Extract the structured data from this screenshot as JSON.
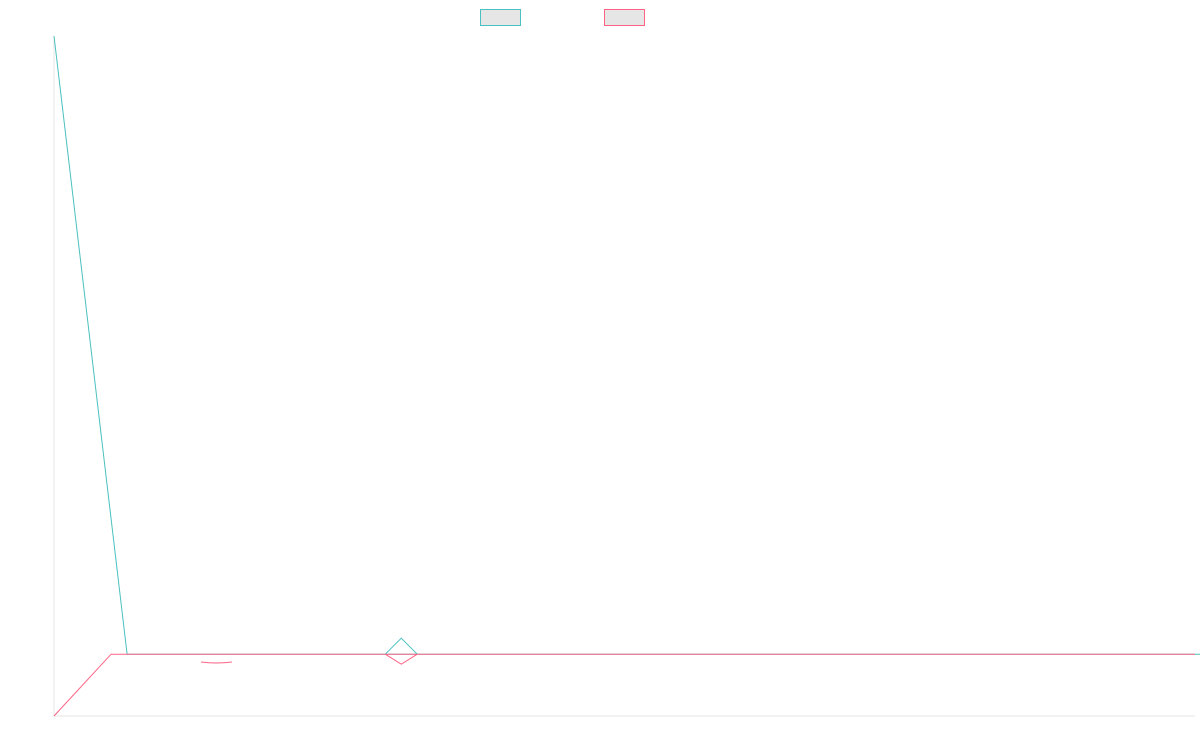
{
  "chart_data": {
    "type": "line",
    "title": "",
    "xlabel": "",
    "ylabel": "",
    "grid": false,
    "legend": "top-center",
    "x": [
      0,
      1,
      2,
      3,
      4,
      5,
      6,
      7,
      8,
      9,
      10,
      11,
      12,
      13,
      14,
      15,
      16,
      17,
      18,
      19,
      20
    ],
    "xlim": [
      0,
      20
    ],
    "ylim": [
      -100,
      1000
    ],
    "series": [
      {
        "name": "",
        "color": "#4bc0c0",
        "fill": "#e6e6e6",
        "values": [
          1000,
          0,
          0,
          0,
          0,
          0,
          0,
          0,
          0,
          0,
          0,
          0,
          0,
          0,
          0,
          0,
          0,
          0,
          0,
          0,
          0
        ],
        "marker": {
          "x": 5,
          "y": 0,
          "direction": "up"
        }
      },
      {
        "name": "",
        "color": "#ff6384",
        "fill": "#e6e6e6",
        "values": [
          -100,
          0,
          0,
          0,
          0,
          0,
          0,
          0,
          0,
          0,
          0,
          0,
          0,
          0,
          0,
          0,
          0,
          0,
          0,
          0,
          0
        ],
        "marker": {
          "x": 5,
          "y": 0,
          "direction": "down"
        }
      }
    ]
  }
}
